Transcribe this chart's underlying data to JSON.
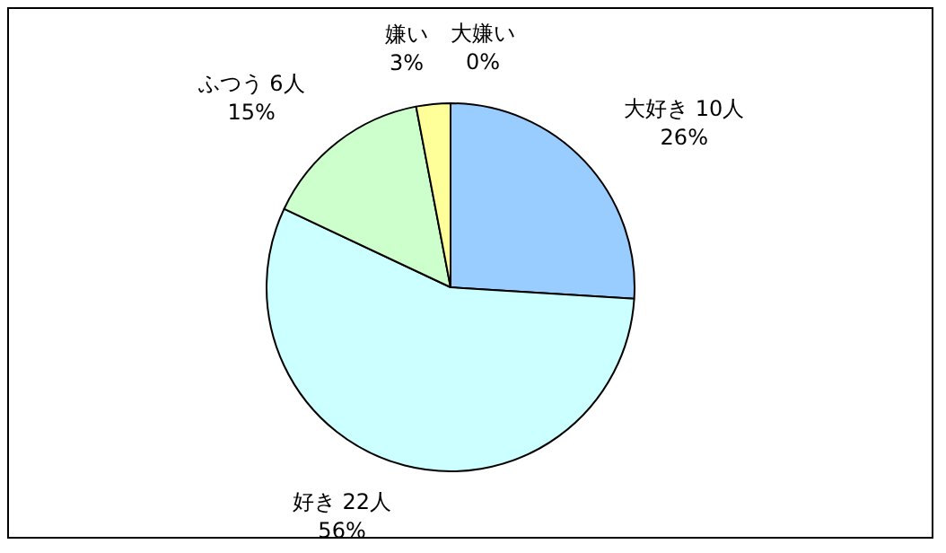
{
  "chart_data": {
    "type": "pie",
    "categories": [
      "大好き 10人",
      "好き 22人",
      "ふつう 6人",
      "嫌い",
      "大嫌い"
    ],
    "values": [
      26,
      56,
      15,
      3,
      0
    ],
    "value_labels": [
      "26%",
      "56%",
      "15%",
      "3%",
      "0%"
    ],
    "colors": [
      "#99ccff",
      "#ccffff",
      "#ccffcc",
      "#ffff99",
      "#ff99cc"
    ],
    "legend": false
  }
}
